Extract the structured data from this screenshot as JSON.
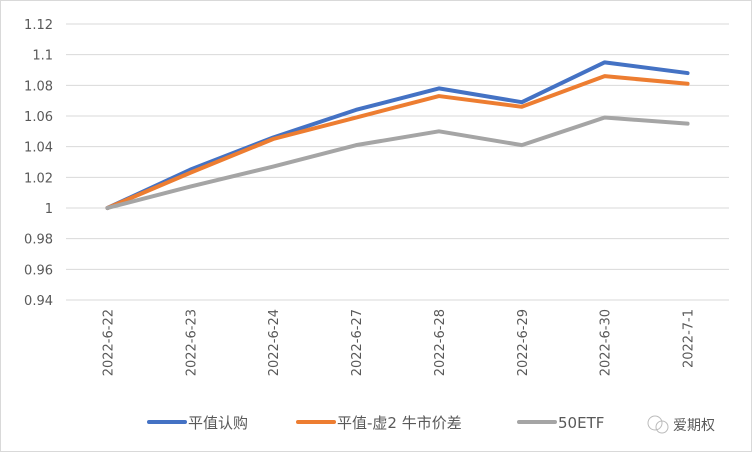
{
  "chart_data": {
    "type": "line",
    "title": "",
    "xlabel": "",
    "ylabel": "",
    "categories": [
      "2022-6-22",
      "2022-6-23",
      "2022-6-24",
      "2022-6-27",
      "2022-6-28",
      "2022-6-29",
      "2022-6-30",
      "2022-7-1"
    ],
    "ylim": [
      0.94,
      1.12
    ],
    "yticks": [
      "0.94",
      "0.96",
      "0.98",
      "1",
      "1.02",
      "1.04",
      "1.06",
      "1.08",
      "1.1",
      "1.12"
    ],
    "grid": true,
    "legend_position": "bottom",
    "series": [
      {
        "name": "平值认购",
        "color": "#4472c4",
        "values": [
          1.0,
          1.025,
          1.046,
          1.064,
          1.078,
          1.069,
          1.095,
          1.088
        ]
      },
      {
        "name": "平值-虚2 牛市价差",
        "color": "#ed7d31",
        "values": [
          1.0,
          1.023,
          1.045,
          1.059,
          1.073,
          1.066,
          1.086,
          1.081
        ]
      },
      {
        "name": "50ETF",
        "color": "#a5a5a5",
        "values": [
          1.0,
          1.014,
          1.027,
          1.041,
          1.05,
          1.041,
          1.059,
          1.055
        ]
      }
    ]
  },
  "watermark": "爱期权"
}
